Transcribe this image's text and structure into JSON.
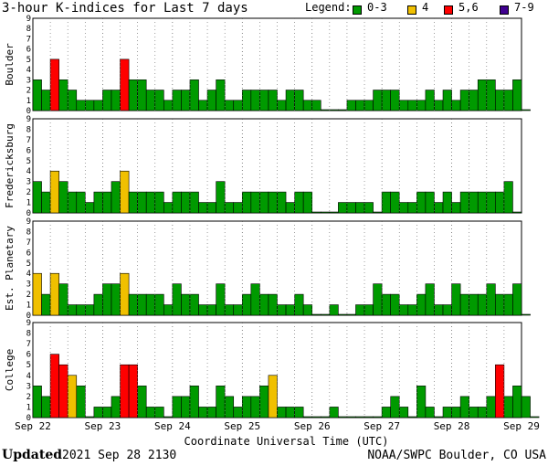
{
  "title": "3-hour K-indices for Last 7 days",
  "legend": {
    "label": "Legend:",
    "items": [
      {
        "name": "0-3",
        "color": "#009a00"
      },
      {
        "name": "4",
        "color": "#f0c000"
      },
      {
        "name": "5,6",
        "color": "#ff0000"
      },
      {
        "name": "7-9",
        "color": "#400090"
      }
    ]
  },
  "chart_data": {
    "type": "bar",
    "xlabel": "Coordinate Universal Time (UTC)",
    "x_tick_labels": [
      "Sep 22",
      "Sep 23",
      "Sep 24",
      "Sep 25",
      "Sep 26",
      "Sep 27",
      "Sep 28",
      "Sep 29"
    ],
    "ylim": [
      0,
      9
    ],
    "y_ticks": [
      0,
      1,
      2,
      3,
      4,
      5,
      6,
      7,
      8,
      9
    ],
    "bars_per_day": 8,
    "grid": "dotted vertical lines at 6-hour intervals",
    "series": [
      {
        "name": "Boulder",
        "values": [
          3,
          2,
          5,
          3,
          2,
          1,
          1,
          1,
          2,
          2,
          5,
          3,
          3,
          2,
          2,
          1,
          2,
          2,
          3,
          1,
          2,
          3,
          1,
          1,
          2,
          2,
          2,
          2,
          1,
          2,
          2,
          1,
          1,
          0,
          0,
          0,
          1,
          1,
          1,
          2,
          2,
          2,
          1,
          1,
          1,
          2,
          1,
          2,
          1,
          2,
          2,
          3,
          3,
          2,
          2,
          3,
          0
        ]
      },
      {
        "name": "Fredericksburg",
        "values": [
          3,
          2,
          4,
          3,
          2,
          2,
          1,
          2,
          2,
          3,
          4,
          2,
          2,
          2,
          2,
          1,
          2,
          2,
          2,
          1,
          1,
          3,
          1,
          1,
          2,
          2,
          2,
          2,
          2,
          1,
          2,
          2,
          0,
          0,
          0,
          1,
          1,
          1,
          1,
          0,
          2,
          2,
          1,
          1,
          2,
          2,
          1,
          2,
          1,
          2,
          2,
          2,
          2,
          2,
          3,
          0
        ]
      },
      {
        "name": "Est. Planetary",
        "values": [
          4,
          2,
          4,
          3,
          1,
          1,
          1,
          2,
          3,
          3,
          4,
          2,
          2,
          2,
          2,
          1,
          3,
          2,
          2,
          1,
          1,
          3,
          1,
          1,
          2,
          3,
          2,
          2,
          1,
          1,
          2,
          1,
          0,
          0,
          1,
          0,
          0,
          1,
          1,
          3,
          2,
          2,
          1,
          1,
          2,
          3,
          1,
          1,
          3,
          2,
          2,
          2,
          3,
          2,
          2,
          3,
          0
        ]
      },
      {
        "name": "College",
        "values": [
          3,
          2,
          6,
          5,
          4,
          3,
          0,
          1,
          1,
          2,
          5,
          5,
          3,
          1,
          1,
          0,
          2,
          2,
          3,
          1,
          1,
          3,
          2,
          1,
          2,
          2,
          3,
          4,
          1,
          1,
          1,
          0,
          0,
          0,
          1,
          0,
          0,
          0,
          0,
          0,
          1,
          2,
          1,
          0,
          3,
          1,
          0,
          1,
          1,
          2,
          1,
          1,
          2,
          5,
          2,
          3,
          2,
          0
        ]
      }
    ]
  },
  "footer": {
    "updated_label": "Updated",
    "updated_value": "2021 Sep 28 2130",
    "credit": "NOAA/SWPC Boulder, CO USA"
  }
}
